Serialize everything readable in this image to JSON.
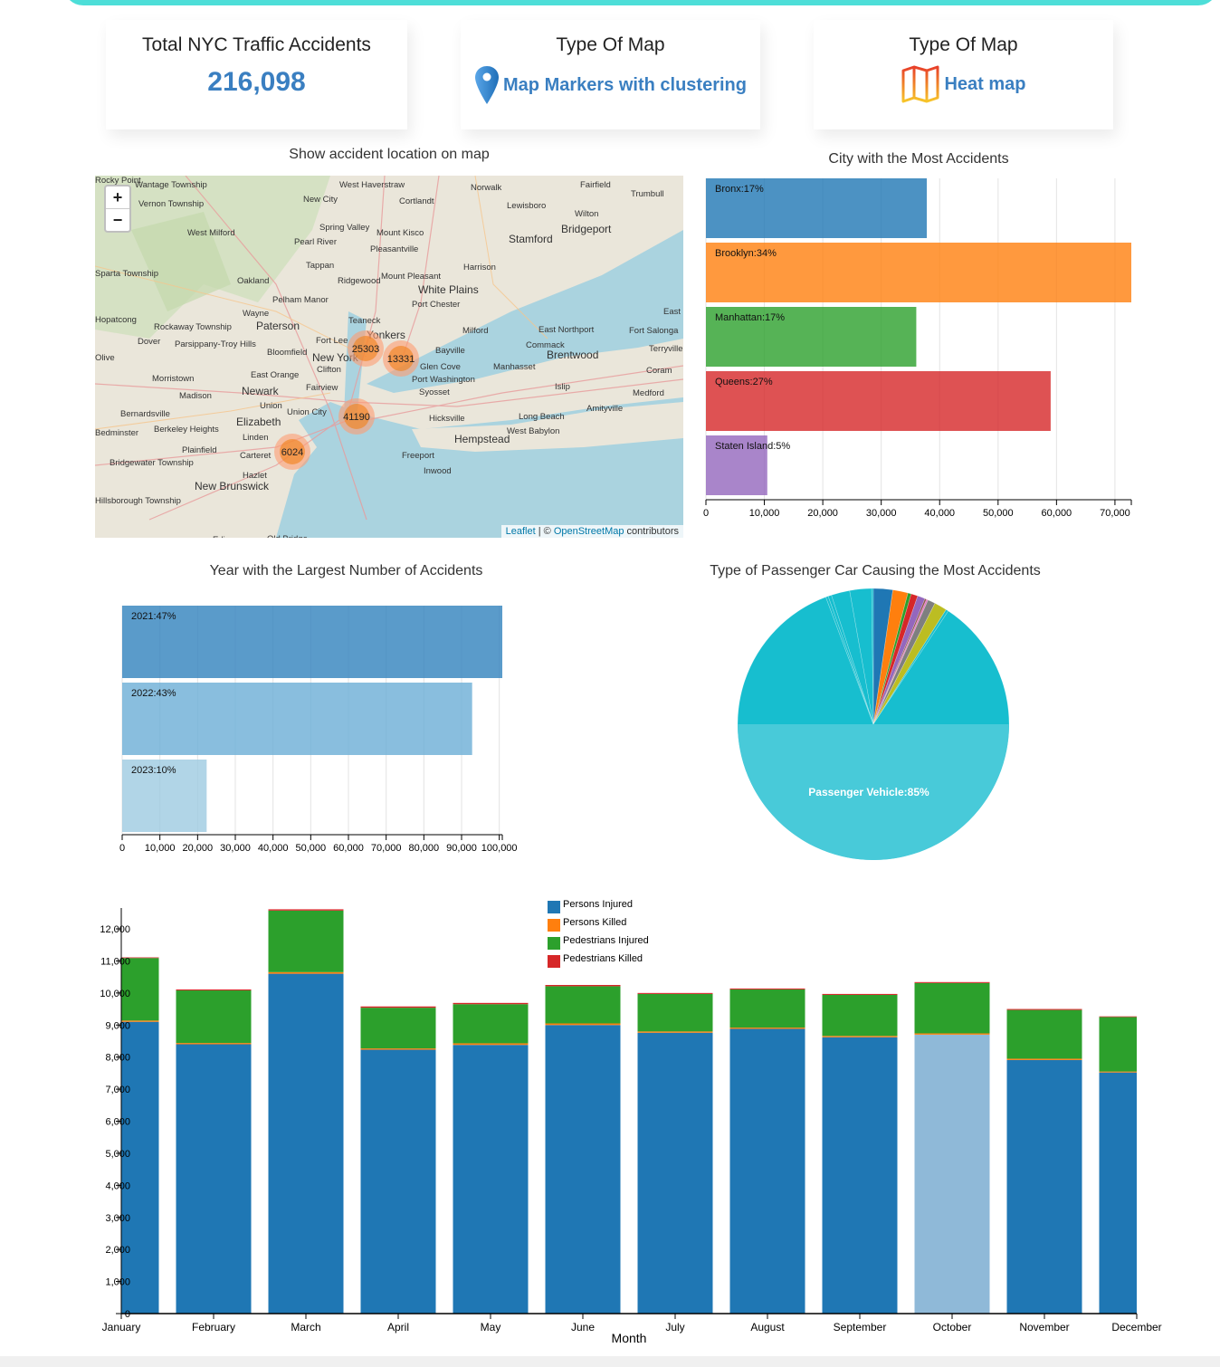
{
  "cards": {
    "total": {
      "title": "Total NYC Traffic Accidents",
      "value": "216,098"
    },
    "markers": {
      "title": "Type Of Map",
      "label": "Map Markers with clustering",
      "icon": "map-pin-icon"
    },
    "heat": {
      "title": "Type Of Map",
      "label": "Heat map",
      "icon": "folded-map-icon"
    }
  },
  "map": {
    "title": "Show accident location on map",
    "zoom_in": "+",
    "zoom_out": "−",
    "attribution": {
      "leaflet": "Leaflet",
      "sep": " | © ",
      "osm": "OpenStreetMap",
      "suffix": " contributors"
    },
    "clusters": [
      {
        "count": "25303"
      },
      {
        "count": "13331"
      },
      {
        "count": "41190"
      },
      {
        "count": "6024"
      }
    ],
    "places": [
      "Wantage Township",
      "Vernon Township",
      "West Milford",
      "Sparta Township",
      "Oakland",
      "Wayne",
      "Paterson",
      "Rockaway Township",
      "Hopatcong",
      "Dover",
      "Parsippany-Troy Hills",
      "Olive",
      "Morristown",
      "Madison",
      "Bernardsville",
      "Bedminster",
      "Berkeley Heights",
      "Plainfield",
      "Bridgewater Township",
      "Hillsborough Township",
      "New Brunswick",
      "Edison",
      "Old Bridge",
      "Hazlet",
      "Carteret",
      "Linden",
      "Elizabeth",
      "Union",
      "Newark",
      "East Orange",
      "Bloomfield",
      "Clifton",
      "Fairview",
      "Union City",
      "New York",
      "Fort Lee",
      "Teaneck",
      "Yonkers",
      "Pelham Manor",
      "Ridgewood",
      "Tappan",
      "Pearl River",
      "Spring Valley",
      "New City",
      "West Haverstraw",
      "Cortlandt",
      "Mount Kisco",
      "Pleasantville",
      "Mount Pleasant",
      "White Plains",
      "Port Chester",
      "Harrison",
      "Stamford",
      "Norwalk",
      "Lewisboro",
      "Wilton",
      "Bridgeport",
      "Fairfield",
      "Trumbull",
      "Milford",
      "Bayville",
      "Glen Cove",
      "Port Washington",
      "Manhasset",
      "Syosset",
      "Hicksville",
      "Hempstead",
      "Freeport",
      "Inwood",
      "Long Beach",
      "West Babylon",
      "Amityville",
      "Islip",
      "Brentwood",
      "Commack",
      "East Northport",
      "Fort Salonga",
      "Terryville",
      "Coram",
      "Medford",
      "East Patchogue",
      "Rocky Point"
    ]
  },
  "city_chart": {
    "title": "City with the Most Accidents",
    "chart_data": {
      "type": "bar",
      "orientation": "horizontal",
      "categories": [
        "Bronx",
        "Brooklyn",
        "Manhattan",
        "Queens",
        "Staten Island"
      ],
      "labels": [
        "Bronx:17%",
        "Brooklyn:34%",
        "Manhattan:17%",
        "Queens:27%",
        "Staten Island:5%"
      ],
      "values": [
        37800,
        72800,
        36000,
        59000,
        10500
      ],
      "colors": [
        "#1f77b4",
        "#ff7f0e",
        "#2ca02c",
        "#d62728",
        "#9467bd"
      ],
      "xlim": [
        0,
        72800
      ],
      "xticks": [
        "0",
        "10,000",
        "20,000",
        "30,000",
        "40,000",
        "50,000",
        "60,000",
        "70,000"
      ],
      "grid": true
    }
  },
  "year_chart": {
    "title": "Year with the Largest Number of Accidents",
    "chart_data": {
      "type": "bar",
      "orientation": "horizontal",
      "categories": [
        "2021",
        "2022",
        "2023"
      ],
      "labels": [
        "2021:47%",
        "2022:43%",
        "2023:10%"
      ],
      "values": [
        100800,
        92800,
        22400
      ],
      "colors": [
        "#3182bd",
        "#6baed6",
        "#9ecae1"
      ],
      "xlim": [
        0,
        100800
      ],
      "xticks": [
        "0",
        "10,000",
        "20,000",
        "30,000",
        "40,000",
        "50,000",
        "60,000",
        "70,000",
        "80,000",
        "90,000",
        "100,000"
      ],
      "grid": true
    }
  },
  "pie_chart": {
    "title": "Type of Passenger Car Causing the Most Accidents",
    "chart_data": {
      "type": "pie",
      "start": "12 o'clock",
      "direction": "clockwise",
      "slices": [
        {
          "value": 2.3,
          "color": "#1f77b4"
        },
        {
          "value": 1.8,
          "color": "#ff7f0e"
        },
        {
          "value": 0.4,
          "color": "#2ca02c"
        },
        {
          "value": 0.8,
          "color": "#d62728"
        },
        {
          "value": 0.9,
          "color": "#9467bd"
        },
        {
          "value": 0.2,
          "color": "#8c564b"
        },
        {
          "value": 0.2,
          "color": "#e377c2"
        },
        {
          "value": 0.9,
          "color": "#7f7f7f"
        },
        {
          "value": 1.5,
          "color": "#bcbd22"
        },
        {
          "value": 0.3,
          "color": "#17becf"
        },
        {
          "label": "Passenger Vehicle:85%",
          "value": 85,
          "color": "#17becf",
          "highlight": "#48cad9"
        },
        {
          "value": 0.3,
          "color": "#17becf"
        },
        {
          "value": 0.4,
          "color": "#17becf"
        },
        {
          "value": 2.2,
          "color": "#17becf"
        },
        {
          "value": 2.6,
          "color": "#17becf"
        },
        {
          "value": 0.2,
          "color": "#17becf"
        }
      ]
    }
  },
  "month_chart": {
    "chart_data": {
      "type": "bar",
      "stacked": true,
      "xlabel": "Month",
      "categories": [
        "January",
        "February",
        "March",
        "April",
        "May",
        "June",
        "July",
        "August",
        "September",
        "October",
        "November",
        "December"
      ],
      "series": [
        {
          "name": "Persons Injured",
          "color": "#1f77b4",
          "values": [
            9100,
            8400,
            10600,
            8230,
            8380,
            9000,
            8760,
            8880,
            8620,
            8700,
            7910,
            7520
          ]
        },
        {
          "name": "Persons Killed",
          "color": "#ff7f0e",
          "values": [
            40,
            40,
            50,
            40,
            50,
            50,
            40,
            40,
            40,
            40,
            40,
            30
          ]
        },
        {
          "name": "Pedestrians Injured",
          "color": "#2ca02c",
          "values": [
            1950,
            1640,
            1920,
            1270,
            1220,
            1160,
            1170,
            1190,
            1280,
            1570,
            1520,
            1700
          ]
        },
        {
          "name": "Pedestrians Killed",
          "color": "#d62728",
          "values": [
            20,
            30,
            40,
            40,
            40,
            40,
            30,
            30,
            30,
            30,
            30,
            20
          ]
        }
      ],
      "highlighted": "October",
      "highlight_color": "#8fb9d8",
      "ylim": [
        0,
        12650
      ],
      "yticks": [
        "0",
        "1,000",
        "2,000",
        "3,000",
        "4,000",
        "5,000",
        "6,000",
        "7,000",
        "8,000",
        "9,000",
        "10,000",
        "11,000",
        "12,000"
      ],
      "legend": "top-center"
    }
  }
}
